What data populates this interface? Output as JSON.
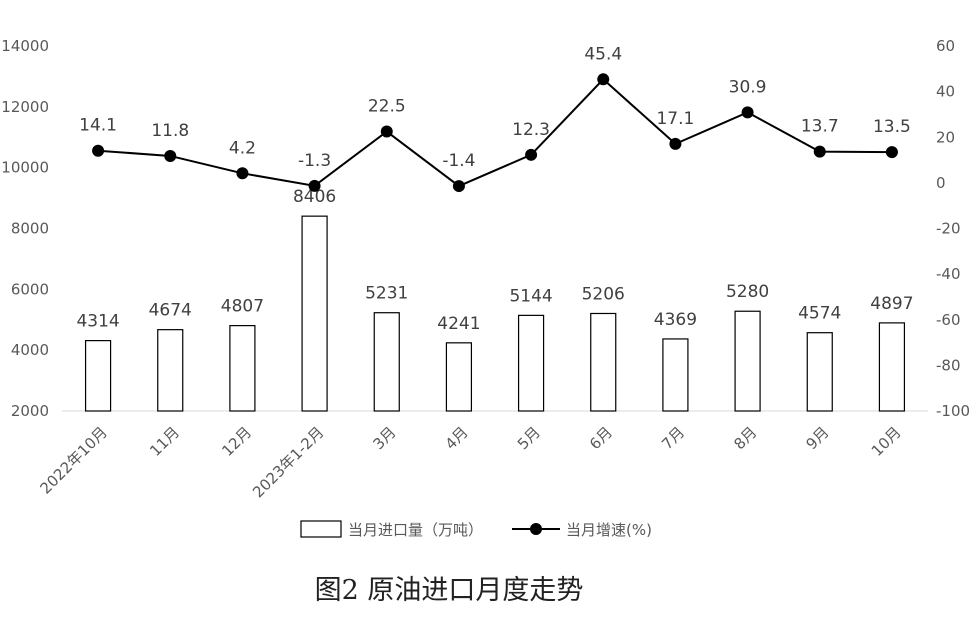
{
  "chart_data": {
    "type": "bar+line",
    "title": "图2 原油进口月度走势",
    "categories": [
      "2022年10月",
      "11月",
      "12月",
      "2023年1-2月",
      "3月",
      "4月",
      "5月",
      "6月",
      "7月",
      "8月",
      "9月",
      "10月"
    ],
    "series": [
      {
        "name": "当月进口量（万吨）",
        "type": "bar",
        "axis": "left",
        "values": [
          4314,
          4674,
          4807,
          8406,
          5231,
          4241,
          5144,
          5206,
          4369,
          5280,
          4574,
          4897
        ]
      },
      {
        "name": "当月增速(%)",
        "type": "line",
        "axis": "right",
        "values": [
          14.1,
          11.8,
          4.2,
          -1.3,
          22.5,
          -1.4,
          12.3,
          45.4,
          17.1,
          30.9,
          13.7,
          13.5
        ]
      }
    ],
    "y_left": {
      "min": 2000,
      "max": 14000,
      "ticks": [
        2000,
        4000,
        6000,
        8000,
        10000,
        12000,
        14000
      ]
    },
    "y_right": {
      "min": -100,
      "max": 60,
      "ticks": [
        -100,
        -80,
        -60,
        -40,
        -20,
        0,
        20,
        40,
        60
      ]
    },
    "grid": false,
    "legend_position": "bottom",
    "colors": {
      "bar_fill": "#ffffff",
      "bar_stroke": "#000000",
      "line": "#000000",
      "text": "#404040"
    }
  }
}
